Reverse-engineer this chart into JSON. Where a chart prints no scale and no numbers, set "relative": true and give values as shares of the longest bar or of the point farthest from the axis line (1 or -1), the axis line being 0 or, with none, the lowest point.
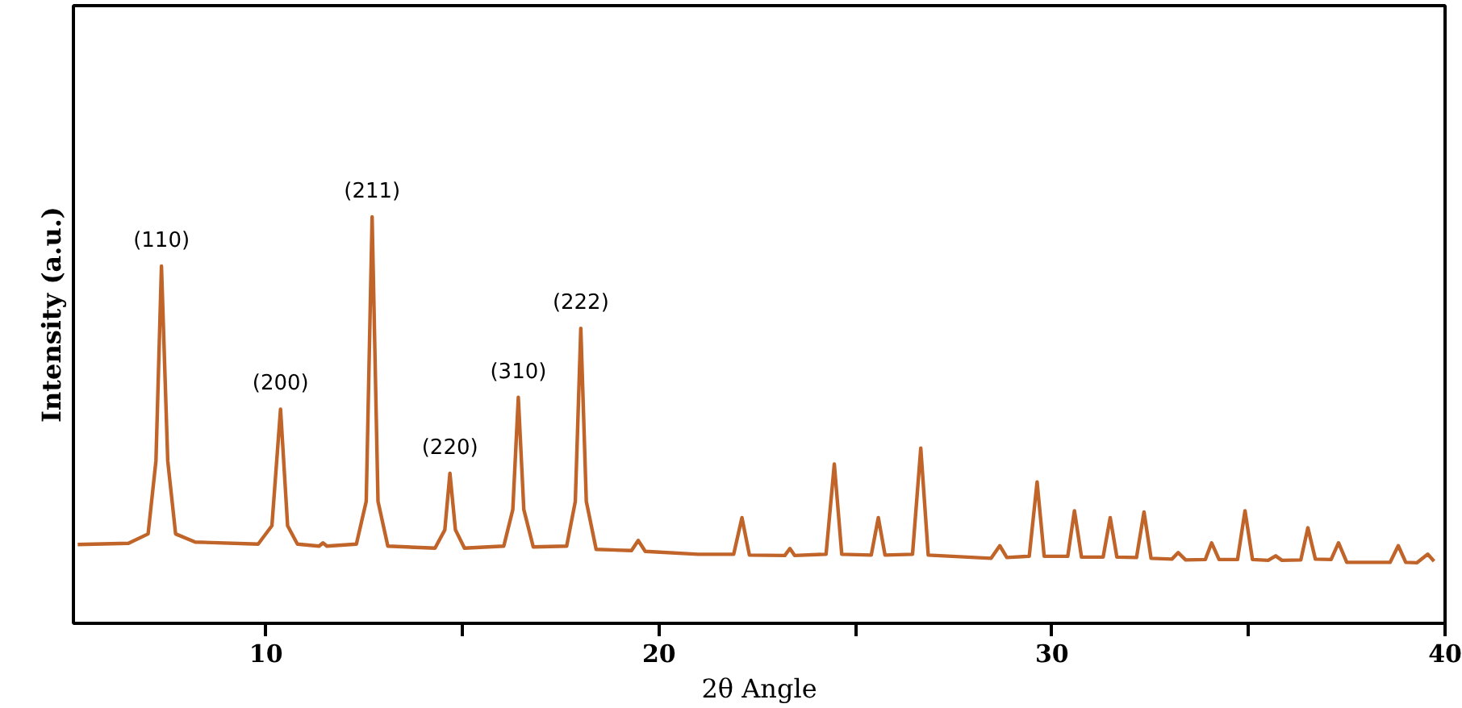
{
  "chart_data": {
    "type": "line",
    "relative": true,
    "xlabel": "2θ Angle",
    "ylabel": "Intensity (a.u.)",
    "xlim": [
      5.1,
      40
    ],
    "xticks": [
      {
        "value": 15,
        "label": null
      },
      10,
      20,
      {
        "value": 25,
        "label": null
      },
      30,
      {
        "value": 35,
        "label": null
      },
      40
    ],
    "tick_labels": "x",
    "grid": false,
    "marker": "none",
    "line_style": "solid",
    "series": [
      {
        "color": "#c0642a",
        "x": [
          5.21,
          6.5,
          7.0,
          7.2,
          7.34,
          7.5,
          7.7,
          8.2,
          9.8,
          10.15,
          10.37,
          10.55,
          10.8,
          11.35,
          11.45,
          11.55,
          12.3,
          12.55,
          12.7,
          12.85,
          13.1,
          14.3,
          14.55,
          14.68,
          14.82,
          15.05,
          16.05,
          16.28,
          16.42,
          16.56,
          16.8,
          17.65,
          17.87,
          18.01,
          18.15,
          18.4,
          19.3,
          19.47,
          19.65,
          21.0,
          21.9,
          22.11,
          22.3,
          23.2,
          23.33,
          23.45,
          24.25,
          24.46,
          24.65,
          25.4,
          25.58,
          25.75,
          26.45,
          26.66,
          26.85,
          28.45,
          28.67,
          28.85,
          29.42,
          29.62,
          29.8,
          30.4,
          30.57,
          30.75,
          31.3,
          31.48,
          31.65,
          32.15,
          32.34,
          32.52,
          33.05,
          33.21,
          33.4,
          33.9,
          34.06,
          34.25,
          34.72,
          34.91,
          35.1,
          35.5,
          35.69,
          35.85,
          36.33,
          36.51,
          36.7,
          37.1,
          37.29,
          37.5,
          38.6,
          38.81,
          39.0,
          39.28,
          39.56,
          39.72
        ],
        "values": [
          0.194,
          0.197,
          0.22,
          0.4,
          0.879,
          0.4,
          0.22,
          0.2,
          0.195,
          0.24,
          0.527,
          0.24,
          0.195,
          0.19,
          0.198,
          0.19,
          0.195,
          0.3,
          1.0,
          0.3,
          0.19,
          0.185,
          0.23,
          0.369,
          0.23,
          0.185,
          0.19,
          0.28,
          0.556,
          0.28,
          0.188,
          0.19,
          0.3,
          0.726,
          0.3,
          0.182,
          0.179,
          0.204,
          0.177,
          0.17,
          0.17,
          0.26,
          0.168,
          0.167,
          0.184,
          0.167,
          0.17,
          0.392,
          0.17,
          0.168,
          0.26,
          0.168,
          0.17,
          0.431,
          0.168,
          0.16,
          0.191,
          0.162,
          0.165,
          0.348,
          0.165,
          0.165,
          0.277,
          0.163,
          0.163,
          0.26,
          0.163,
          0.162,
          0.274,
          0.16,
          0.158,
          0.174,
          0.156,
          0.157,
          0.198,
          0.157,
          0.157,
          0.277,
          0.157,
          0.155,
          0.166,
          0.155,
          0.156,
          0.235,
          0.158,
          0.157,
          0.198,
          0.15,
          0.15,
          0.191,
          0.15,
          0.149,
          0.17,
          0.153
        ]
      }
    ],
    "annotations": [
      {
        "text": "(110)",
        "x": 7.34,
        "y": 0.879
      },
      {
        "text": "(200)",
        "x": 10.37,
        "y": 0.527
      },
      {
        "text": "(211)",
        "x": 12.7,
        "y": 1.0
      },
      {
        "text": "(220)",
        "x": 14.68,
        "y": 0.369
      },
      {
        "text": "(310)",
        "x": 16.42,
        "y": 0.556
      },
      {
        "text": "(222)",
        "x": 18.01,
        "y": 0.726
      }
    ]
  }
}
